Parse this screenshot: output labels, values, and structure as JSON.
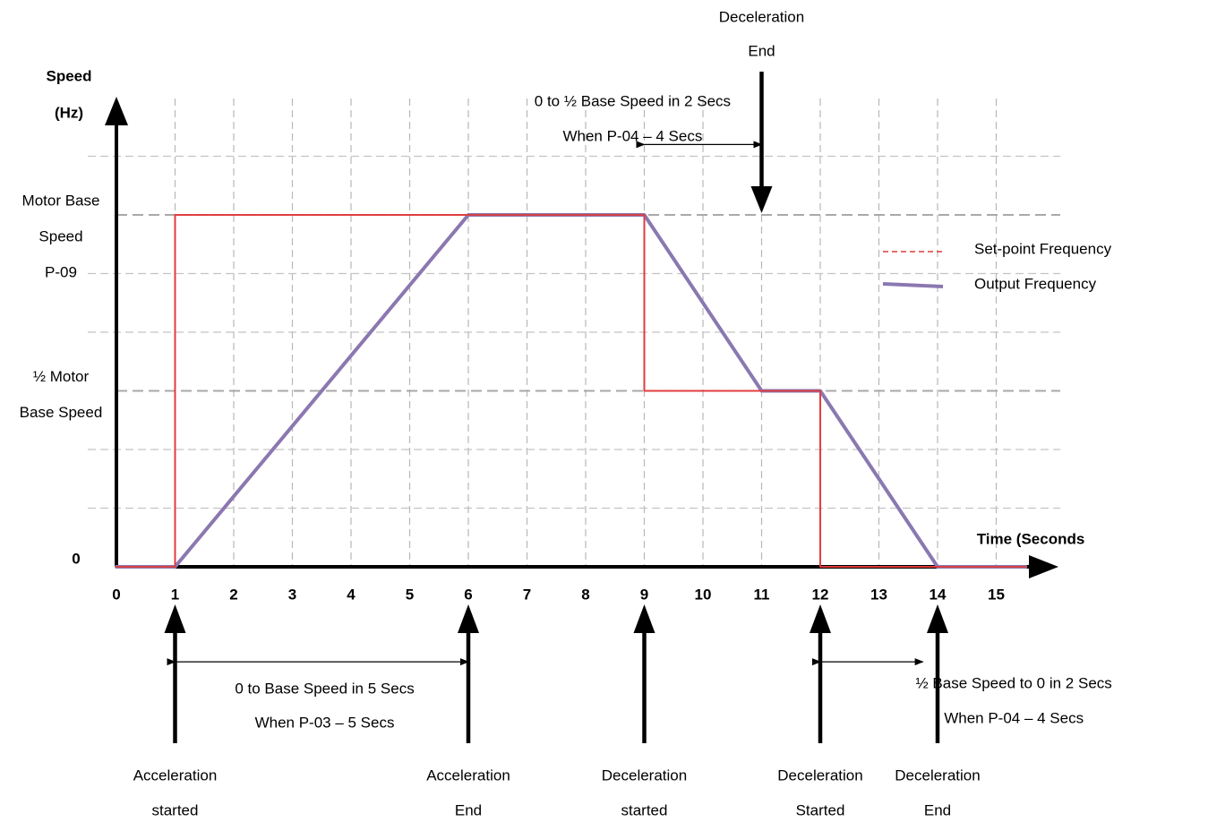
{
  "chart_data": {
    "type": "line",
    "title": "",
    "xlabel": "Time (Seconds",
    "ylabel_lines": [
      "Speed",
      "(Hz)"
    ],
    "x_ticks": [
      "0",
      "1",
      "2",
      "3",
      "4",
      "5",
      "6",
      "7",
      "8",
      "9",
      "10",
      "11",
      "12",
      "13",
      "14",
      "15"
    ],
    "x_tick_values": [
      0,
      1,
      2,
      3,
      4,
      5,
      6,
      7,
      8,
      9,
      10,
      11,
      12,
      13,
      14,
      15
    ],
    "y_ticks": [
      {
        "value": 0,
        "lines": [
          "0"
        ],
        "bold": true
      },
      {
        "value": 0.5,
        "lines": [
          "½ Motor",
          "Base Speed"
        ],
        "bold": false
      },
      {
        "value": 1,
        "lines": [
          "Motor Base",
          "Speed",
          "P-09"
        ],
        "bold": false
      }
    ],
    "xlim": [
      0,
      15.5
    ],
    "ylim": [
      0,
      1.5
    ],
    "grid": true,
    "legend_position": "right",
    "series": [
      {
        "name": "Set-point Frequency",
        "color": "#e23a3a",
        "style": "dashed",
        "points": [
          [
            0,
            0
          ],
          [
            1,
            0
          ],
          [
            1,
            1
          ],
          [
            9,
            1
          ],
          [
            9,
            0.5
          ],
          [
            12,
            0.5
          ],
          [
            12,
            0
          ],
          [
            15.5,
            0
          ]
        ]
      },
      {
        "name": "Output Frequency",
        "color": "#8b78b0",
        "style": "solid",
        "points": [
          [
            0,
            0
          ],
          [
            1,
            0
          ],
          [
            6,
            1
          ],
          [
            9,
            1
          ],
          [
            11,
            0.5
          ],
          [
            12,
            0.5
          ],
          [
            14,
            0
          ],
          [
            15.5,
            0
          ]
        ]
      }
    ],
    "annotations": {
      "bottom_arrows": [
        {
          "x": 1,
          "lines": [
            "Acceleration",
            "started"
          ]
        },
        {
          "x": 6,
          "lines": [
            "Acceleration",
            "End"
          ]
        },
        {
          "x": 9,
          "lines": [
            "Deceleration",
            "started"
          ]
        },
        {
          "x": 12,
          "lines": [
            "Deceleration",
            "Started"
          ]
        },
        {
          "x": 14,
          "lines": [
            "Deceleration",
            "End"
          ]
        }
      ],
      "top_arrow": {
        "x": 11,
        "lines": [
          "Deceleration",
          "End"
        ]
      },
      "spans": [
        {
          "x1": 1,
          "x2": 6,
          "y_level": -0.27,
          "lines": [
            "0 to Base Speed in 5 Secs",
            "When P-03 – 5 Secs"
          ],
          "text_x": 3.55,
          "text_y_level": -0.35
        },
        {
          "x1": 9,
          "x2": 11,
          "y_level": 1.2,
          "lines": [
            "0 to ½ Base Speed in 2 Secs",
            "When P-04 – 4 Secs"
          ],
          "text_x": 8.8,
          "text_y_level": 1.3
        },
        {
          "x1": 12,
          "x2": 13.75,
          "y_level": -0.27,
          "lines": [
            "½ Base Speed to 0 in 2 Secs",
            "When P-04 – 4 Secs"
          ],
          "text_x": 15.3,
          "text_y_level": -0.33
        }
      ]
    }
  }
}
